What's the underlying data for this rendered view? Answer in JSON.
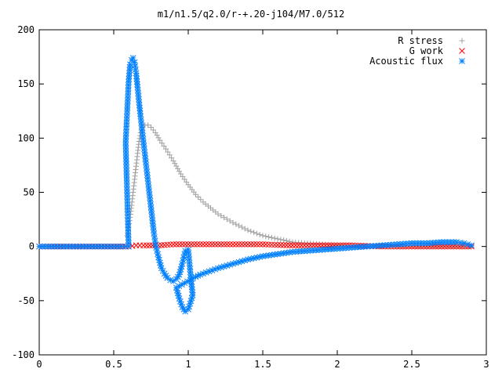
{
  "chart_data": {
    "type": "scatter",
    "title": "m1/n1.5/q2.0/r-+.20-j104/M7.0/512",
    "xlabel": "",
    "ylabel": "",
    "xlim": [
      0,
      3
    ],
    "ylim": [
      -100,
      200
    ],
    "x_ticks": [
      "0",
      "0.5",
      "1",
      "1.5",
      "2",
      "2.5",
      "3"
    ],
    "y_ticks": [
      "200",
      "150",
      "100",
      "50",
      "0",
      "-50",
      "-100"
    ],
    "grid": false,
    "legend_position": "top-right",
    "series": [
      {
        "name": "R stress",
        "marker": "plus",
        "color": "#a0a0a0",
        "points": [
          [
            0.59,
            10
          ],
          [
            0.6,
            18
          ],
          [
            0.61,
            27
          ],
          [
            0.62,
            38
          ],
          [
            0.63,
            50
          ],
          [
            0.64,
            62
          ],
          [
            0.65,
            74
          ],
          [
            0.66,
            86
          ],
          [
            0.67,
            97
          ],
          [
            0.68,
            105
          ],
          [
            0.69,
            110
          ],
          [
            0.71,
            112
          ],
          [
            0.73,
            112
          ],
          [
            0.75,
            110
          ],
          [
            0.78,
            105
          ],
          [
            0.81,
            98
          ],
          [
            0.85,
            90
          ],
          [
            0.9,
            79
          ],
          [
            0.95,
            67
          ],
          [
            1.0,
            57
          ],
          [
            1.05,
            48
          ],
          [
            1.1,
            41
          ],
          [
            1.2,
            30
          ],
          [
            1.3,
            22
          ],
          [
            1.4,
            15
          ],
          [
            1.5,
            10
          ],
          [
            1.6,
            7
          ],
          [
            1.7,
            4
          ],
          [
            1.8,
            3
          ],
          [
            1.9,
            2
          ],
          [
            2.0,
            1
          ],
          [
            2.2,
            0
          ],
          [
            2.4,
            0
          ],
          [
            2.6,
            0
          ],
          [
            2.8,
            0
          ],
          [
            2.9,
            0
          ]
        ]
      },
      {
        "name": "G work",
        "marker": "cross",
        "color": "#ff0000",
        "points": [
          [
            0.0,
            0
          ],
          [
            0.5,
            0
          ],
          [
            0.6,
            0
          ],
          [
            0.65,
            1
          ],
          [
            0.7,
            1
          ],
          [
            0.8,
            1
          ],
          [
            0.9,
            2
          ],
          [
            1.0,
            2
          ],
          [
            1.1,
            2
          ],
          [
            1.3,
            2
          ],
          [
            1.5,
            2
          ],
          [
            1.7,
            1
          ],
          [
            1.9,
            1
          ],
          [
            2.1,
            1
          ],
          [
            2.3,
            0
          ],
          [
            2.5,
            0
          ],
          [
            2.7,
            0
          ],
          [
            2.9,
            0
          ]
        ]
      },
      {
        "name": "Acoustic flux",
        "marker": "star",
        "color": "#0080ff",
        "points": [
          [
            0.0,
            0
          ],
          [
            0.2,
            0
          ],
          [
            0.4,
            0
          ],
          [
            0.55,
            0
          ],
          [
            0.6,
            0
          ],
          [
            0.58,
            96
          ],
          [
            0.6,
            152
          ],
          [
            0.61,
            168
          ],
          [
            0.62,
            172
          ],
          [
            0.63,
            174
          ],
          [
            0.64,
            170
          ],
          [
            0.65,
            160
          ],
          [
            0.66,
            147
          ],
          [
            0.67,
            133
          ],
          [
            0.68,
            120
          ],
          [
            0.69,
            108
          ],
          [
            0.7,
            96
          ],
          [
            0.71,
            84
          ],
          [
            0.72,
            72
          ],
          [
            0.73,
            60
          ],
          [
            0.74,
            48
          ],
          [
            0.75,
            36
          ],
          [
            0.76,
            24
          ],
          [
            0.77,
            12
          ],
          [
            0.78,
            2
          ],
          [
            0.8,
            -10
          ],
          [
            0.82,
            -20
          ],
          [
            0.84,
            -25
          ],
          [
            0.86,
            -29
          ],
          [
            0.88,
            -31
          ],
          [
            0.9,
            -32
          ],
          [
            0.92,
            -30
          ],
          [
            0.94,
            -26
          ],
          [
            0.96,
            -16
          ],
          [
            0.98,
            -4
          ],
          [
            1.0,
            -3
          ],
          [
            1.01,
            -18
          ],
          [
            1.02,
            -32
          ],
          [
            1.03,
            -45
          ],
          [
            1.0,
            -58
          ],
          [
            0.98,
            -60
          ],
          [
            0.96,
            -56
          ],
          [
            0.94,
            -48
          ],
          [
            0.92,
            -38
          ],
          [
            1.05,
            -28
          ],
          [
            1.08,
            -26
          ],
          [
            1.12,
            -24
          ],
          [
            1.2,
            -20
          ],
          [
            1.3,
            -16
          ],
          [
            1.4,
            -12
          ],
          [
            1.5,
            -9
          ],
          [
            1.6,
            -7
          ],
          [
            1.7,
            -5
          ],
          [
            1.8,
            -4
          ],
          [
            1.9,
            -3
          ],
          [
            2.0,
            -2
          ],
          [
            2.1,
            -1
          ],
          [
            2.2,
            0
          ],
          [
            2.3,
            1
          ],
          [
            2.4,
            2
          ],
          [
            2.5,
            3
          ],
          [
            2.6,
            3
          ],
          [
            2.7,
            4
          ],
          [
            2.8,
            4
          ],
          [
            2.85,
            3
          ],
          [
            2.9,
            1
          ]
        ]
      }
    ]
  }
}
